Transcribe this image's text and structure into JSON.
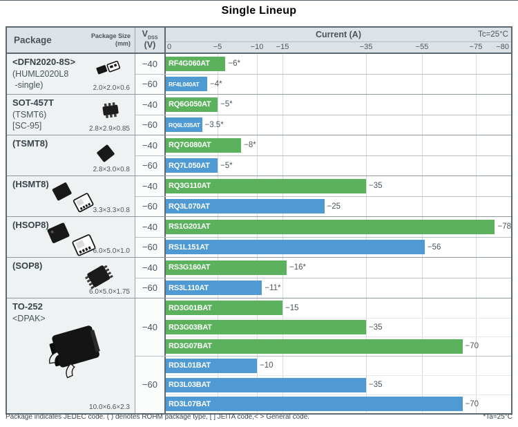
{
  "title": "Single Lineup",
  "header": {
    "package_label": "Package",
    "package_size_label": "Package Size",
    "package_size_unit": "(mm)",
    "vdss_main": "V",
    "vdss_sub": "DSS",
    "vdss_unit": "(V)",
    "current_label": "Current (A)",
    "temp_condition": "Tc=25°C"
  },
  "footer": {
    "note": "Package indicates JEDEC code. ( ) denotes ROHM package type, [ ] JEITA code,< > General code.",
    "temp_note": "*Ta=25°C"
  },
  "colors": {
    "green_bar": "#5cb25c",
    "blue_bar": "#4f9ad3"
  },
  "chart_data": {
    "type": "bar",
    "orientation": "horizontal",
    "xlabel": "Current (A)",
    "condition": "Tc=25°C",
    "x_ticks": [
      {
        "label": "0",
        "value": 0,
        "pos": 0
      },
      {
        "label": "−5",
        "value": 5,
        "pos": 15
      },
      {
        "label": "−10",
        "value": 10,
        "pos": 26.4
      },
      {
        "label": "−15",
        "value": 15,
        "pos": 33.8
      },
      {
        "label": "−35",
        "value": 35,
        "pos": 58
      },
      {
        "label": "−55",
        "value": 55,
        "pos": 74.2
      },
      {
        "label": "−75",
        "value": 75,
        "pos": 89.8
      },
      {
        "label": "−80",
        "value": 80,
        "pos": 100
      }
    ],
    "sections": [
      {
        "package": {
          "name_lines": [
            {
              "text": "<DFN2020-8S>",
              "bold": true
            },
            {
              "text": "(HUML2020L8",
              "bold": false
            },
            {
              "text": " -single)",
              "bold": false
            }
          ],
          "size": "2.0×2.0×0.6",
          "icon": "dfn2020"
        },
        "groups": [
          {
            "vdss": "−40",
            "color": "green",
            "bars": [
              {
                "part": "RF4G060AT",
                "value": 6,
                "label": "−6*"
              }
            ]
          },
          {
            "vdss": "−60",
            "color": "blue",
            "bars": [
              {
                "part": "RF4L040AT",
                "value": 4,
                "label": "−4*"
              }
            ]
          }
        ]
      },
      {
        "package": {
          "name_lines": [
            {
              "text": "SOT-457T",
              "bold": true
            },
            {
              "text": "(TSMT6)",
              "bold": false
            },
            {
              "text": "[SC-95]",
              "bold": false
            }
          ],
          "size": "2.8×2.9×0.85",
          "icon": "sot457t"
        },
        "groups": [
          {
            "vdss": "−40",
            "color": "green",
            "bars": [
              {
                "part": "RQ6G050AT",
                "value": 5,
                "label": "−5*"
              }
            ]
          },
          {
            "vdss": "−60",
            "color": "blue",
            "bars": [
              {
                "part": "RQ6L035AT",
                "value": 3.5,
                "label": "−3.5*"
              }
            ]
          }
        ]
      },
      {
        "package": {
          "name_lines": [
            {
              "text": "(TSMT8)",
              "bold": true
            }
          ],
          "size": "2.8×3.0×0.8",
          "icon": "tsmt8"
        },
        "groups": [
          {
            "vdss": "−40",
            "color": "green",
            "bars": [
              {
                "part": "RQ7G080AT",
                "value": 8,
                "label": "−8*"
              }
            ]
          },
          {
            "vdss": "−60",
            "color": "blue",
            "bars": [
              {
                "part": "RQ7L050AT",
                "value": 5,
                "label": "−5*"
              }
            ]
          }
        ]
      },
      {
        "package": {
          "name_lines": [
            {
              "text": "(HSMT8)",
              "bold": true
            }
          ],
          "size": "3.3×3.3×0.8",
          "icon": "hsmt8"
        },
        "groups": [
          {
            "vdss": "−40",
            "color": "green",
            "bars": [
              {
                "part": "RQ3G110AT",
                "value": 35,
                "label": "−35"
              }
            ]
          },
          {
            "vdss": "−60",
            "color": "blue",
            "bars": [
              {
                "part": "RQ3L070AT",
                "value": 25,
                "label": "−25"
              }
            ]
          }
        ]
      },
      {
        "package": {
          "name_lines": [
            {
              "text": "(HSOP8)",
              "bold": true
            }
          ],
          "size": "6.0×5.0×1.0",
          "icon": "hsop8"
        },
        "groups": [
          {
            "vdss": "−40",
            "color": "green",
            "bars": [
              {
                "part": "RS1G201AT",
                "value": 78,
                "label": "−78"
              }
            ]
          },
          {
            "vdss": "−60",
            "color": "blue",
            "bars": [
              {
                "part": "RS1L151AT",
                "value": 56,
                "label": "−56"
              }
            ]
          }
        ]
      },
      {
        "package": {
          "name_lines": [
            {
              "text": "(SOP8)",
              "bold": true
            }
          ],
          "size": "6.0×5.0×1.75",
          "icon": "sop8"
        },
        "groups": [
          {
            "vdss": "−40",
            "color": "green",
            "bars": [
              {
                "part": "RS3G160AT",
                "value": 16,
                "label": "−16*"
              }
            ]
          },
          {
            "vdss": "−60",
            "color": "blue",
            "bars": [
              {
                "part": "RS3L110AT",
                "value": 11,
                "label": "−11*"
              }
            ]
          }
        ]
      },
      {
        "package": {
          "name_lines": [
            {
              "text": "TO-252",
              "bold": true
            },
            {
              "text": "<DPAK>",
              "bold": false
            }
          ],
          "size": "10.0×6.6×2.3",
          "icon": "to252"
        },
        "groups": [
          {
            "vdss": "−40",
            "color": "green",
            "bars": [
              {
                "part": "RD3G01BAT",
                "value": 15,
                "label": "−15"
              },
              {
                "part": "RD3G03BAT",
                "value": 35,
                "label": "−35"
              },
              {
                "part": "RD3G07BAT",
                "value": 70,
                "label": "−70"
              }
            ]
          },
          {
            "vdss": "−60",
            "color": "blue",
            "bars": [
              {
                "part": "RD3L01BAT",
                "value": 10,
                "label": "−10"
              },
              {
                "part": "RD3L03BAT",
                "value": 35,
                "label": "−35"
              },
              {
                "part": "RD3L07BAT",
                "value": 70,
                "label": "−70"
              }
            ]
          }
        ]
      }
    ]
  }
}
